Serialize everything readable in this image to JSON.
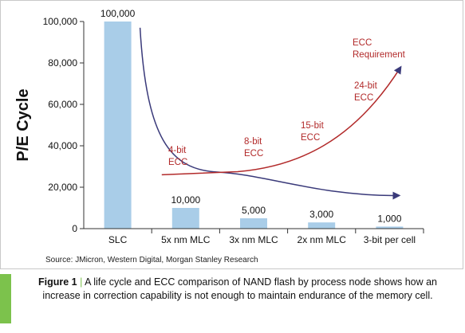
{
  "chart_data": {
    "type": "bar",
    "categories": [
      "SLC",
      "5x nm MLC",
      "3x nm MLC",
      "2x nm MLC",
      "3-bit per cell"
    ],
    "values": [
      100000,
      10000,
      5000,
      3000,
      1000
    ],
    "value_labels": [
      "100,000",
      "10,000",
      "5,000",
      "3,000",
      "1,000"
    ],
    "ylabel": "P/E Cycle",
    "ylim": [
      0,
      100000
    ],
    "yticks": [
      0,
      20000,
      40000,
      60000,
      80000,
      100000
    ],
    "ytick_labels": [
      "0",
      "20,000",
      "40,000",
      "60,000",
      "80,000",
      "100,000"
    ],
    "grid": false,
    "bar_color": "#a9cde8",
    "annotation_color": "#b22a2a",
    "curve_color": "#3a3a7a",
    "ecc_annotations": [
      "4-bit ECC",
      "8-bit ECC",
      "15-bit ECC",
      "24-bit ECC",
      "ECC Requirement"
    ],
    "ecc_line_points": [
      {
        "x": "5x nm MLC",
        "y": 27000
      },
      {
        "x": "3x nm MLC",
        "y": 30000
      },
      {
        "x": "2x nm MLC",
        "y": 45000
      },
      {
        "x": "3-bit per cell",
        "y": 78000
      }
    ],
    "endurance_curve_points": [
      {
        "x": "SLC",
        "y": 97000
      },
      {
        "x": "5x nm MLC",
        "y": 40000
      },
      {
        "x": "3x nm MLC",
        "y": 25000
      },
      {
        "x": "2x nm MLC",
        "y": 17000
      },
      {
        "x": "3-bit per cell",
        "y": 16000
      }
    ]
  },
  "source": "Source: JMicron, Western Digital, Morgan Stanley Research",
  "caption": {
    "label": "Figure 1",
    "separator": "|",
    "text": "A life cycle and ECC comparison of NAND flash by process node shows how an increase in correction capability is not enough to maintain endurance of the memory cell."
  }
}
